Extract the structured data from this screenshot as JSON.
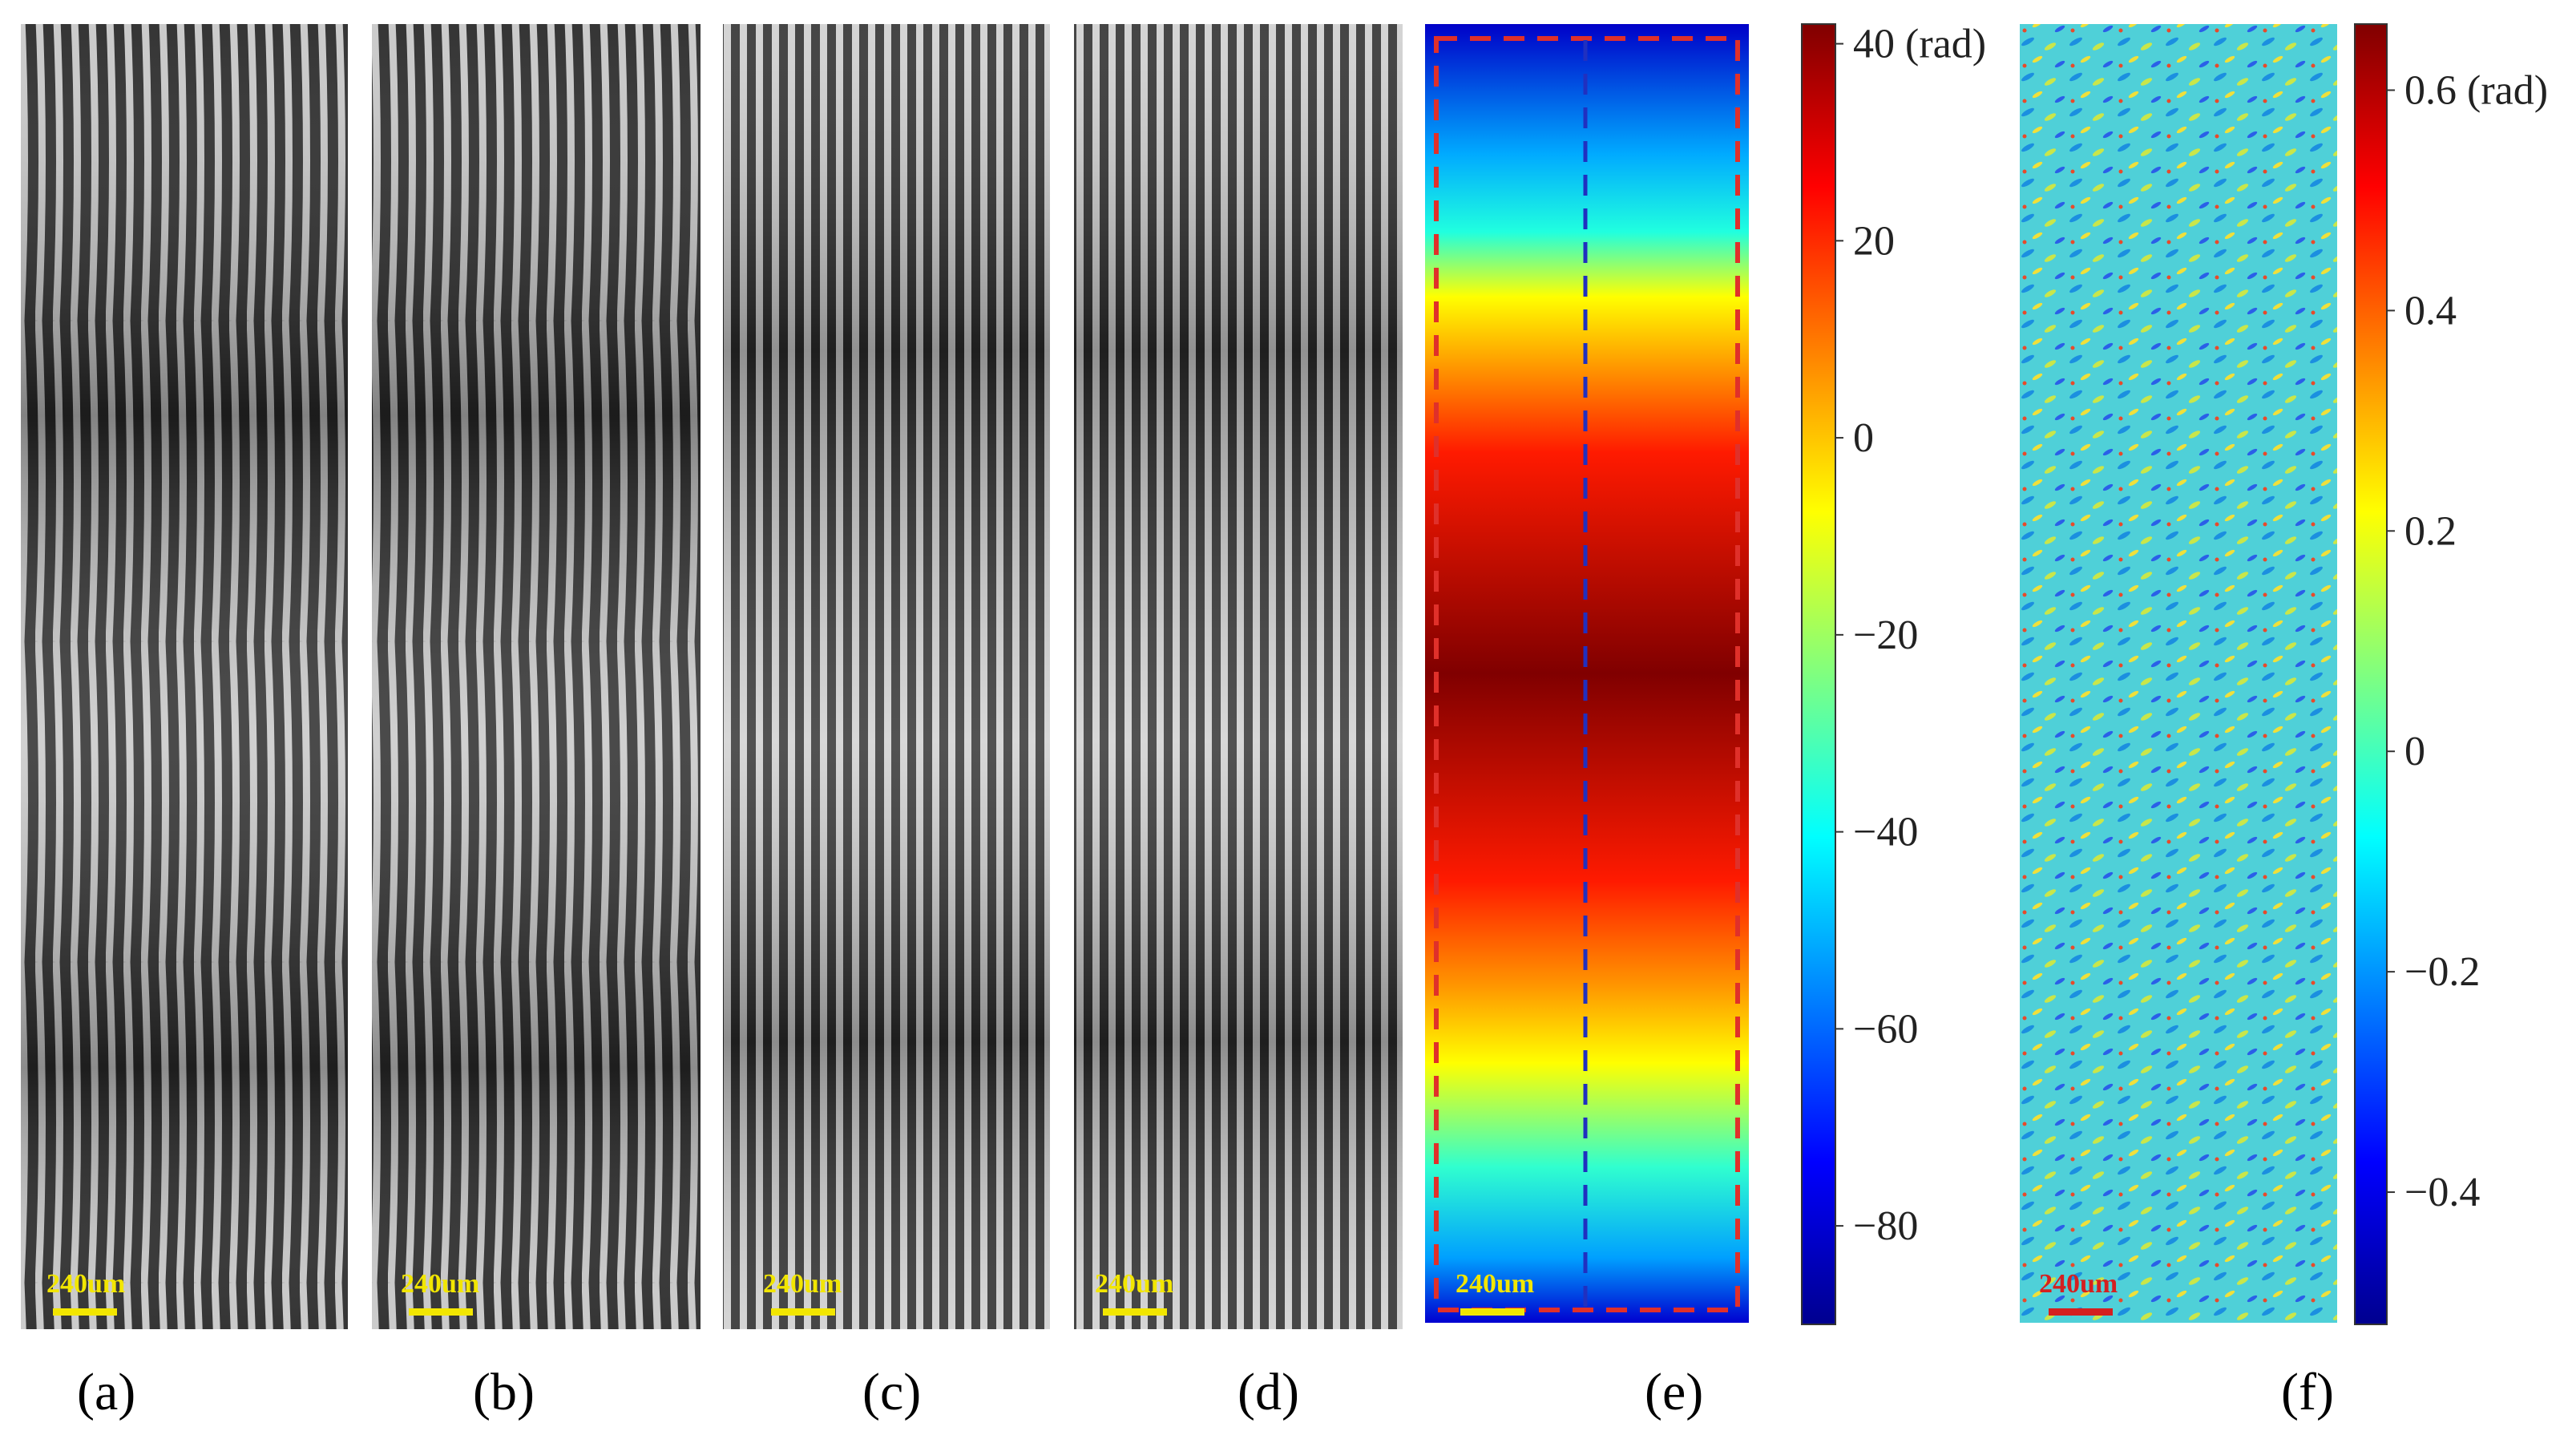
{
  "figure": {
    "panels": [
      {
        "id": "a",
        "label": "(a)",
        "scale_text": "240um",
        "pattern": "curved-fringes"
      },
      {
        "id": "b",
        "label": "(b)",
        "scale_text": "240um",
        "pattern": "curved-fringes"
      },
      {
        "id": "c",
        "label": "(c)",
        "scale_text": "240um",
        "pattern": "vertical-fringes"
      },
      {
        "id": "d",
        "label": "(d)",
        "scale_text": "240um",
        "pattern": "vertical-fringes"
      },
      {
        "id": "e",
        "label": "(e)",
        "scale_text": "240um",
        "pattern": "phase-map"
      },
      {
        "id": "f",
        "label": "(f)",
        "scale_text": "240um",
        "pattern": "residual-noise-map"
      }
    ],
    "colorbar_e": {
      "ticks": [
        "40 (rad)",
        "20",
        "0",
        "−20",
        "−40",
        "−60",
        "−80"
      ],
      "tick_values": [
        40,
        20,
        0,
        -20,
        -40,
        -60,
        -80
      ],
      "range": [
        -90,
        42
      ]
    },
    "colorbar_f": {
      "ticks": [
        "0.6 (rad)",
        "0.4",
        "0.2",
        "0",
        "−0.2",
        "−0.4"
      ],
      "tick_values": [
        0.6,
        0.4,
        0.2,
        0,
        -0.2,
        -0.4
      ],
      "range": [
        -0.52,
        0.66
      ]
    },
    "colors": {
      "scale_bar": "#f2e600",
      "scale_bar_f": "#d42020",
      "roi_box": "#e0302a",
      "roi_line": "#2030c0",
      "jet": [
        "#00008f",
        "#0000ff",
        "#00ffff",
        "#ffff00",
        "#ff0000",
        "#800000"
      ]
    }
  }
}
